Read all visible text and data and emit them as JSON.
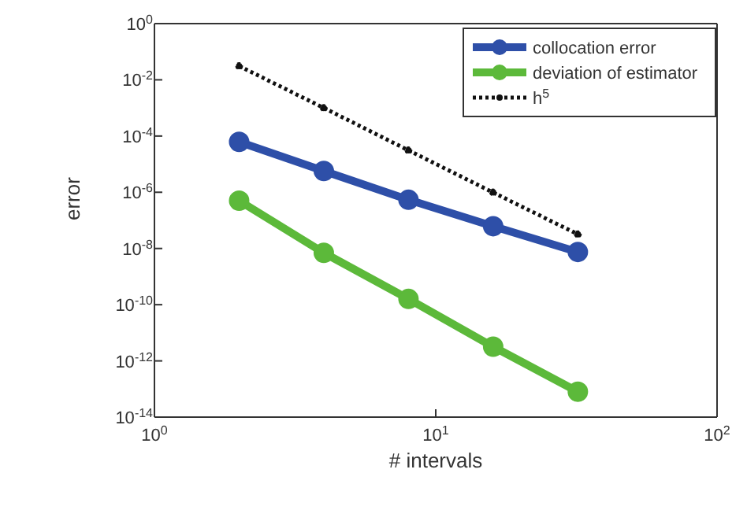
{
  "chart_data": {
    "type": "line",
    "xlabel": "# intervals",
    "ylabel": "error",
    "log": "xy",
    "grid": false,
    "legend": "top right",
    "x": [
      2,
      4,
      8,
      16,
      32
    ],
    "xlim": [
      1,
      100
    ],
    "xticks": [
      {
        "value": 1,
        "label": "10$^{0}$"
      },
      {
        "value": 10,
        "label": "10$^{1}$"
      },
      {
        "value": 100,
        "label": "10$^{2}$"
      }
    ],
    "ylim": [
      1e-14,
      1
    ],
    "yticks": [
      {
        "value": 1e-14,
        "label": "10$^{-14}$"
      },
      {
        "value": 1e-12,
        "label": "10$^{-12}$"
      },
      {
        "value": 1e-10,
        "label": "10$^{-10}$"
      },
      {
        "value": 1e-08,
        "label": "10$^{-8}$"
      },
      {
        "value": 1e-06,
        "label": "10$^{-6}$"
      },
      {
        "value": 0.0001,
        "label": "10$^{-4}$"
      },
      {
        "value": 0.01,
        "label": "10$^{-2}$"
      },
      {
        "value": 1,
        "label": "10$^{0}$"
      }
    ],
    "series": [
      {
        "name": "collocation error",
        "color": "#2e4fa8",
        "marker": "circle",
        "line_style": "solid",
        "values": [
          6.2e-05,
          5.7e-06,
          5.4e-07,
          6.2e-08,
          7.5e-09
        ]
      },
      {
        "name": "deviation of estimator",
        "color": "#5cb93a",
        "marker": "circle",
        "line_style": "solid",
        "values": [
          5e-07,
          7e-09,
          1.6e-10,
          3.2e-12,
          8e-14
        ]
      },
      {
        "name": "h$^{5}$",
        "color": "#111111",
        "marker": "circle",
        "line_style": "dotted",
        "values": [
          0.031,
          0.001,
          3.1e-05,
          9.8e-07,
          3.2e-08
        ]
      }
    ]
  }
}
